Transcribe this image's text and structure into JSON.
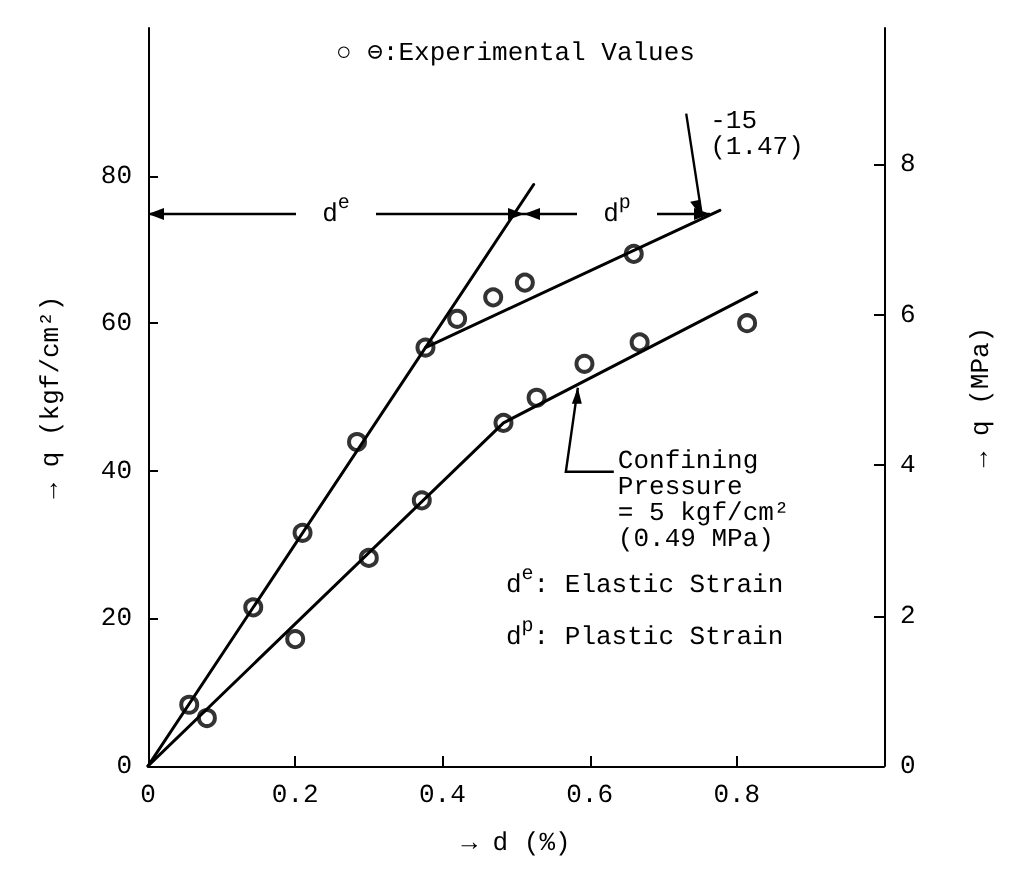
{
  "chart_data": {
    "type": "scatter",
    "xlabel": "→ d (%)",
    "ylabel": "→ q (kgf/cm²)",
    "y2label": "→ q (MPa)",
    "xlim": [
      0,
      1
    ],
    "xticks": [
      0,
      0.2,
      0.4,
      0.6,
      0.8
    ],
    "ylim": [
      0,
      100
    ],
    "yticks": [
      0,
      20,
      40,
      60,
      80
    ],
    "y2lim": [
      0,
      9.81
    ],
    "y2ticks": [
      0,
      2,
      4,
      6,
      8
    ],
    "grid": false,
    "marker": "circle",
    "series": [
      {
        "color": "#000000",
        "x": [
          0.056,
          0.143,
          0.21,
          0.284,
          0.377,
          0.42,
          0.469,
          0.512,
          0.66
        ],
        "values": [
          8.3,
          21.5,
          31.6,
          43.9,
          56.7,
          60.6,
          63.5,
          65.5,
          69.4
        ]
      },
      {
        "color": "#000000",
        "x": [
          0.08,
          0.2,
          0.3,
          0.372,
          0.483,
          0.528,
          0.593,
          0.668,
          0.814
        ],
        "values": [
          6.5,
          17.2,
          28.2,
          36.0,
          46.5,
          49.9,
          54.5,
          57.4,
          60.0
        ]
      },
      {
        "type": "line",
        "marker": "none",
        "color": "#000000",
        "x": [
          0,
          0.524
        ],
        "values": [
          0,
          78.8
        ]
      },
      {
        "type": "line",
        "marker": "none",
        "color": "#000000",
        "x": [
          0.377,
          0.777
        ],
        "values": [
          56.7,
          75.3
        ]
      },
      {
        "type": "line",
        "marker": "none",
        "color": "#000000",
        "x": [
          0,
          0.483,
          0.827
        ],
        "values": [
          0,
          46.5,
          64.2
        ]
      }
    ],
    "annotations": [
      "○ ⊖:Experimental Values",
      "d$^{e}$",
      "d$^{p}$",
      {
        "text": "-15\n(1.47)",
        "x": 0.753,
        "y": 74.3
      },
      {
        "text": "Confining\nPressure\n= 5 kgf/cm²\n(0.49 MPa)",
        "x": 0.584,
        "y": 51.8
      },
      "d$^{e}$: Elastic Strain",
      "d$^{p}$: Plastic Strain"
    ]
  }
}
